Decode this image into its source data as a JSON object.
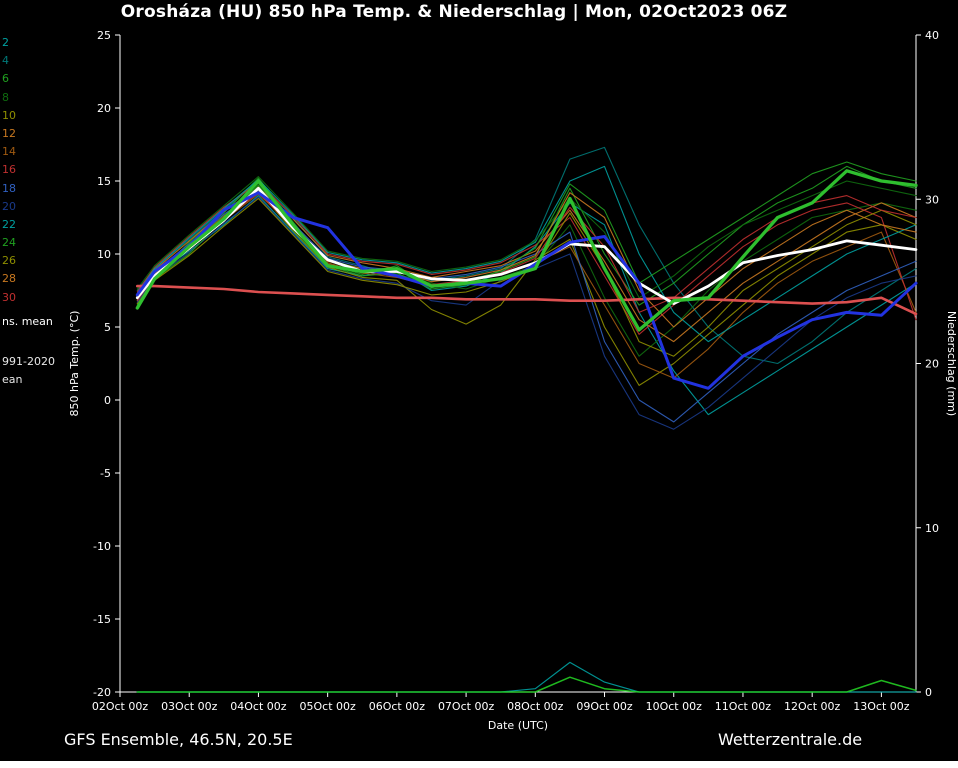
{
  "title": "Orosháza  (HU)  850 hPa Temp. & Niederschlag | Mon, 02Oct2023 06Z",
  "footer": {
    "left": "GFS Ensemble, 46.5N, 20.5E",
    "right": "Wetterzentrale.de"
  },
  "legend": {
    "member_labels": [
      {
        "text": "2",
        "color": "#00a0a0"
      },
      {
        "text": "4",
        "color": "#007878"
      },
      {
        "text": "6",
        "color": "#20a020"
      },
      {
        "text": "8",
        "color": "#0f6b0f"
      },
      {
        "text": "10",
        "color": "#8f8f00"
      },
      {
        "text": "12",
        "color": "#c87820"
      },
      {
        "text": "14",
        "color": "#a05a10"
      },
      {
        "text": "16",
        "color": "#c03030"
      },
      {
        "text": "18",
        "color": "#3060c0"
      },
      {
        "text": "20",
        "color": "#1a3a8a"
      },
      {
        "text": "22",
        "color": "#00a0a0"
      },
      {
        "text": "24",
        "color": "#20a020"
      },
      {
        "text": "26",
        "color": "#8f8f00"
      },
      {
        "text": "28",
        "color": "#c87820"
      },
      {
        "text": "30",
        "color": "#c03030"
      }
    ],
    "mean_label": {
      "text": "ns. mean",
      "color": "#ffffff"
    },
    "clim_label_lines": [
      {
        "text": "991-2020",
        "color": "#e8e8e8"
      },
      {
        "text": "ean",
        "color": "#e8e8e8"
      }
    ]
  },
  "chart_data": {
    "type": "line",
    "title": "Orosháza (HU) 850 hPa Temp. & Niederschlag | Mon, 02Oct2023 06Z",
    "xlabel": "Date (UTC)",
    "x_tick_labels": [
      "02Oct 00z",
      "03Oct 00z",
      "04Oct 00z",
      "05Oct 00z",
      "06Oct 00z",
      "07Oct 00z",
      "08Oct 00z",
      "09Oct 00z",
      "10Oct 00z",
      "11Oct 00z",
      "12Oct 00z",
      "13Oct 00z"
    ],
    "x_max": 11.5,
    "x": [
      0.25,
      0.5,
      1,
      1.5,
      2,
      2.5,
      3,
      3.5,
      4,
      4.5,
      5,
      5.5,
      6,
      6.5,
      7,
      7.5,
      8,
      8.5,
      9,
      9.5,
      10,
      10.5,
      11,
      11.5
    ],
    "y_left": {
      "label": "850 hPa Temp. (°C)",
      "min": -20,
      "max": 25,
      "ticks": [
        25,
        20,
        15,
        10,
        5,
        0,
        -5,
        -10,
        -15,
        -20
      ]
    },
    "y_right": {
      "label": "Niederschlag (mm)",
      "min": 0,
      "max": 40,
      "ticks": [
        40,
        30,
        20,
        10,
        0
      ]
    },
    "series": [
      {
        "name": "member-02",
        "axis": "left",
        "color": "#00a0a0",
        "width": 1.1,
        "values": [
          6.8,
          8.6,
          10.2,
          12.0,
          14.0,
          11.5,
          9.0,
          8.5,
          9.0,
          7.5,
          7.8,
          8.7,
          10.5,
          13.5,
          12.0,
          6.0,
          2.0,
          -1.0,
          0.5,
          2.0,
          3.5,
          5.0,
          6.5,
          8.0
        ]
      },
      {
        "name": "member-04",
        "axis": "left",
        "color": "#007878",
        "width": 1.1,
        "values": [
          7.5,
          9.0,
          11.0,
          13.0,
          15.0,
          12.5,
          9.8,
          9.2,
          8.5,
          8.2,
          8.5,
          9.0,
          11.0,
          16.5,
          17.3,
          12.0,
          8.0,
          5.0,
          3.0,
          2.5,
          4.0,
          6.0,
          7.5,
          9.0
        ]
      },
      {
        "name": "member-06",
        "axis": "left",
        "color": "#20a020",
        "width": 1.1,
        "values": [
          6.5,
          8.4,
          10.8,
          12.8,
          15.2,
          12.2,
          9.3,
          8.6,
          9.2,
          7.7,
          8.2,
          8.8,
          9.8,
          14.5,
          10.0,
          6.5,
          8.0,
          10.0,
          12.0,
          13.5,
          14.5,
          16.0,
          15.0,
          14.5
        ]
      },
      {
        "name": "member-08",
        "axis": "left",
        "color": "#0f6b0f",
        "width": 1.1,
        "values": [
          7.0,
          8.7,
          10.4,
          12.2,
          14.8,
          11.8,
          9.6,
          9.0,
          8.6,
          8.0,
          7.6,
          8.4,
          9.2,
          12.0,
          7.0,
          3.0,
          5.0,
          7.5,
          9.5,
          11.0,
          12.5,
          13.0,
          13.5,
          13.0
        ]
      },
      {
        "name": "member-10",
        "axis": "left",
        "color": "#8f8f00",
        "width": 1.1,
        "values": [
          6.6,
          8.5,
          10.6,
          12.6,
          14.3,
          11.6,
          9.1,
          8.4,
          8.2,
          6.2,
          5.2,
          6.5,
          9.6,
          11.0,
          5.0,
          1.0,
          2.5,
          4.5,
          6.5,
          8.5,
          10.0,
          11.5,
          12.0,
          11.0
        ]
      },
      {
        "name": "member-12",
        "axis": "left",
        "color": "#c87820",
        "width": 1.1,
        "values": [
          7.2,
          8.9,
          10.9,
          12.9,
          14.6,
          12.4,
          9.9,
          9.4,
          9.0,
          8.4,
          8.8,
          9.2,
          10.2,
          13.0,
          9.5,
          5.5,
          4.0,
          6.0,
          8.0,
          9.5,
          11.0,
          12.5,
          13.5,
          12.5
        ]
      },
      {
        "name": "member-14",
        "axis": "left",
        "color": "#a05a10",
        "width": 1.1,
        "values": [
          6.9,
          8.6,
          10.3,
          12.3,
          14.1,
          11.9,
          9.4,
          8.7,
          8.4,
          7.8,
          8.1,
          8.6,
          9.4,
          10.5,
          6.5,
          2.5,
          1.5,
          3.5,
          6.0,
          8.0,
          9.5,
          10.5,
          11.5,
          6.0
        ]
      },
      {
        "name": "member-16",
        "axis": "left",
        "color": "#c03030",
        "width": 1.1,
        "values": [
          7.4,
          9.1,
          11.2,
          13.2,
          14.9,
          12.6,
          10.0,
          9.5,
          9.3,
          8.6,
          8.9,
          9.4,
          10.6,
          12.5,
          8.5,
          4.5,
          6.5,
          8.5,
          10.5,
          12.0,
          13.0,
          13.5,
          12.5,
          5.5
        ]
      },
      {
        "name": "member-18",
        "axis": "left",
        "color": "#3060c0",
        "width": 1.1,
        "values": [
          7.1,
          8.8,
          10.7,
          12.7,
          14.4,
          12.1,
          9.7,
          9.1,
          8.9,
          8.3,
          8.6,
          9.1,
          10.0,
          11.5,
          4.0,
          0.0,
          -1.5,
          0.5,
          2.5,
          4.5,
          6.0,
          7.5,
          8.5,
          9.5
        ]
      },
      {
        "name": "member-20",
        "axis": "left",
        "color": "#1a3a8a",
        "width": 1.1,
        "values": [
          6.7,
          8.4,
          10.1,
          12.1,
          13.9,
          11.4,
          8.9,
          8.3,
          8.0,
          6.8,
          6.5,
          8.2,
          9.0,
          10.0,
          3.0,
          -1.0,
          -2.0,
          -0.5,
          1.5,
          3.5,
          5.5,
          7.0,
          8.0,
          8.5
        ]
      },
      {
        "name": "member-22",
        "axis": "left",
        "color": "#00a0a0",
        "width": 1.1,
        "values": [
          7.3,
          9.0,
          11.1,
          13.1,
          15.1,
          12.7,
          10.1,
          9.6,
          9.4,
          8.7,
          9.0,
          9.5,
          10.8,
          15.0,
          16.0,
          10.0,
          6.0,
          4.0,
          5.5,
          7.0,
          8.5,
          10.0,
          11.0,
          12.0
        ]
      },
      {
        "name": "member-24",
        "axis": "left",
        "color": "#20a020",
        "width": 1.1,
        "values": [
          6.4,
          8.3,
          10.0,
          12.4,
          14.7,
          11.7,
          9.2,
          8.5,
          8.7,
          7.6,
          7.9,
          8.9,
          10.4,
          14.8,
          13.0,
          8.0,
          9.5,
          11.0,
          12.5,
          14.0,
          15.5,
          16.3,
          15.5,
          15.0
        ]
      },
      {
        "name": "member-26",
        "axis": "left",
        "color": "#0f6b0f",
        "width": 1.1,
        "values": [
          7.6,
          9.2,
          11.3,
          13.3,
          15.3,
          12.8,
          10.2,
          9.7,
          9.5,
          8.8,
          9.1,
          9.6,
          10.9,
          13.8,
          11.5,
          7.0,
          8.5,
          10.5,
          12.0,
          13.0,
          14.0,
          15.0,
          14.5,
          14.0
        ]
      },
      {
        "name": "member-28",
        "axis": "left",
        "color": "#8f8f00",
        "width": 1.1,
        "values": [
          6.3,
          8.2,
          9.9,
          11.9,
          13.8,
          11.3,
          8.8,
          8.2,
          7.9,
          7.2,
          7.4,
          8.1,
          9.1,
          12.8,
          9.0,
          4.0,
          3.0,
          5.0,
          7.5,
          9.0,
          10.5,
          12.0,
          13.0,
          12.0
        ]
      },
      {
        "name": "member-30",
        "axis": "left",
        "color": "#c87820",
        "width": 1.1,
        "values": [
          7.0,
          8.7,
          10.5,
          12.5,
          14.5,
          12.0,
          9.5,
          9.0,
          8.8,
          8.1,
          8.4,
          8.9,
          9.9,
          14.2,
          12.5,
          7.5,
          5.0,
          7.0,
          9.0,
          10.5,
          12.0,
          13.0,
          12.0,
          11.5
        ]
      },
      {
        "name": "member-extra",
        "axis": "left",
        "color": "#c03030",
        "width": 1.1,
        "values": [
          6.8,
          8.5,
          10.4,
          12.4,
          14.2,
          11.8,
          9.3,
          8.8,
          8.5,
          7.9,
          8.2,
          8.7,
          9.7,
          13.2,
          10.5,
          6.0,
          7.0,
          9.0,
          11.0,
          12.5,
          13.5,
          14.0,
          13.0,
          12.5
        ]
      },
      {
        "name": "precip-member",
        "axis": "right",
        "color": "#00a0a0",
        "width": 1.2,
        "values": [
          0,
          0,
          0,
          0,
          0,
          0,
          0,
          0,
          0,
          0,
          0,
          0,
          0.2,
          1.8,
          0.6,
          0,
          0,
          0,
          0,
          0,
          0,
          0,
          0,
          0
        ]
      },
      {
        "name": "precip-main",
        "axis": "right",
        "color": "#22cc22",
        "width": 1.5,
        "values": [
          0,
          0,
          0,
          0,
          0,
          0,
          0,
          0,
          0,
          0,
          0,
          0,
          0,
          0.9,
          0.2,
          0,
          0,
          0,
          0,
          0,
          0,
          0,
          0.7,
          0.1
        ]
      },
      {
        "name": "climate-mean-1991-2020",
        "axis": "left",
        "color": "#dc5050",
        "width": 2.6,
        "values": [
          7.8,
          7.8,
          7.7,
          7.6,
          7.4,
          7.3,
          7.2,
          7.1,
          7.0,
          7.0,
          6.9,
          6.9,
          6.9,
          6.8,
          6.8,
          6.9,
          7.0,
          6.9,
          6.8,
          6.7,
          6.6,
          6.7,
          7.0,
          5.9
        ]
      },
      {
        "name": "ensemble-mean",
        "axis": "left",
        "color": "#ffffff",
        "width": 2.8,
        "values": [
          7.0,
          8.5,
          10.4,
          12.3,
          14.5,
          11.8,
          9.6,
          8.8,
          8.8,
          8.3,
          8.2,
          8.6,
          9.4,
          10.7,
          10.5,
          8.0,
          6.6,
          7.8,
          9.4,
          9.9,
          10.3,
          10.9,
          10.6,
          10.3
        ]
      },
      {
        "name": "main-run-blue",
        "axis": "left",
        "color": "#2233e0",
        "width": 3.0,
        "values": [
          7.2,
          8.8,
          10.5,
          13.0,
          14.2,
          12.5,
          11.8,
          9.0,
          8.5,
          7.8,
          8.0,
          7.8,
          9.3,
          10.8,
          11.2,
          8.0,
          1.5,
          0.8,
          3.0,
          4.3,
          5.5,
          6.0,
          5.8,
          8.0
        ]
      },
      {
        "name": "main-run-green",
        "axis": "left",
        "color": "#2fbf2f",
        "width": 3.3,
        "values": [
          6.3,
          8.3,
          10.5,
          12.4,
          15.0,
          12.0,
          9.2,
          8.8,
          9.0,
          7.8,
          8.0,
          8.3,
          9.0,
          13.8,
          9.0,
          4.8,
          6.8,
          7.0,
          9.8,
          12.5,
          13.5,
          15.7,
          15.0,
          14.7
        ]
      }
    ]
  }
}
